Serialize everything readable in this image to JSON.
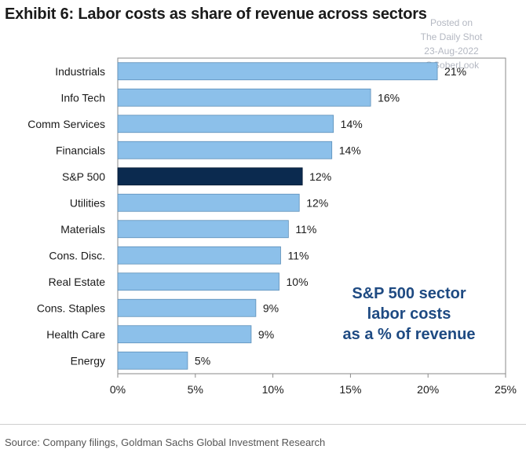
{
  "title": "Exhibit 6: Labor costs as share of revenue across sectors",
  "watermark": {
    "line1": "Posted on",
    "line2": "The Daily Shot",
    "line3": "23-Aug-2022",
    "line4": "@SoberLook"
  },
  "source": "Source: Company filings, Goldman Sachs Global Investment Research",
  "colors": {
    "bar": "#8cc0ea",
    "highlight": "#0b2a4f",
    "annotation": "#1e4a82"
  },
  "chart_data": {
    "type": "bar",
    "orientation": "horizontal",
    "categories": [
      "Industrials",
      "Info Tech",
      "Comm Services",
      "Financials",
      "S&P 500",
      "Utilities",
      "Materials",
      "Cons. Disc.",
      "Real Estate",
      "Cons. Staples",
      "Health Care",
      "Energy"
    ],
    "values": [
      20.6,
      16.3,
      13.9,
      13.8,
      11.9,
      11.7,
      11.0,
      10.5,
      10.4,
      8.9,
      8.6,
      4.5
    ],
    "data_labels": [
      "21%",
      "16%",
      "14%",
      "14%",
      "12%",
      "12%",
      "11%",
      "11%",
      "10%",
      "9%",
      "9%",
      "5%"
    ],
    "highlight": "S&P 500",
    "xlim": [
      0,
      25
    ],
    "xticks": [
      "0%",
      "5%",
      "10%",
      "15%",
      "20%",
      "25%"
    ],
    "annotation": [
      "S&P 500 sector",
      "labor costs",
      "as a % of revenue"
    ],
    "grid": false
  }
}
